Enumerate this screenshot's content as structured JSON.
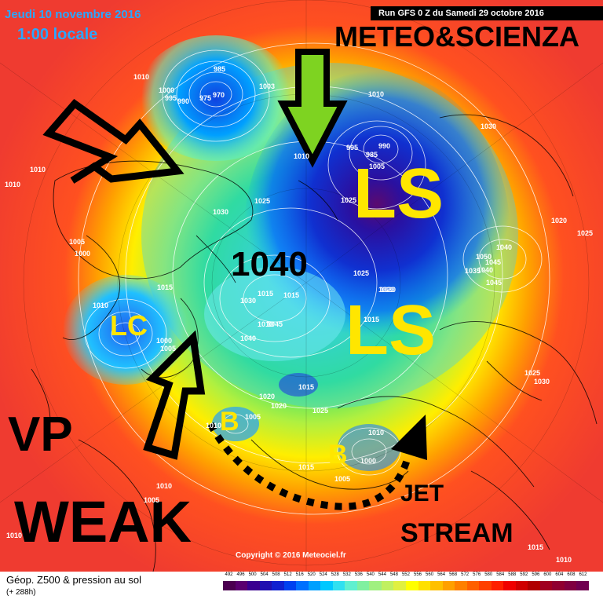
{
  "map": {
    "date": "Jeudi 10 novembre 2016",
    "time": "1:00 locale",
    "run_banner": "Run GFS 0 Z du Samedi 29 octobre 2016",
    "brand": "METEO&SCIENZA",
    "copyright": "Copyright © 2016 Meteociel.fr",
    "annotations": {
      "ls_upper": "LS",
      "ls_lower": "LS",
      "lc": "LC",
      "b_left": "B",
      "b_right": "B",
      "high_pressure": "1040",
      "vp": "VP",
      "weak": "WEAK",
      "jet": "JET",
      "stream": "STREAM"
    },
    "pressure_labels": [
      "1010",
      "985",
      "1000",
      "995",
      "990",
      "975",
      "970",
      "1003",
      "1010",
      "995",
      "990",
      "985",
      "1005",
      "1030",
      "1010",
      "1010",
      "1010",
      "1005",
      "1000",
      "1030",
      "1025",
      "1025",
      "1020",
      "1025",
      "1015",
      "1010",
      "1000",
      "1005",
      "1015",
      "1030",
      "1015",
      "1040",
      "1010",
      "1045",
      "1040",
      "1020",
      "1020",
      "1015",
      "1025",
      "1005",
      "1010",
      "1015",
      "1010",
      "1000",
      "1005",
      "1010",
      "1005",
      "1010",
      "1030",
      "1025",
      "1020",
      "1040",
      "1050",
      "1045",
      "1035",
      "1045",
      "1025",
      "1020",
      "1015",
      "1010",
      "1015"
    ]
  },
  "legend": {
    "title": "Géop. Z500 & pression au sol",
    "subtitle": "(+ 288h)",
    "scale_values": [
      "492",
      "496",
      "500",
      "504",
      "508",
      "512",
      "516",
      "520",
      "524",
      "528",
      "532",
      "536",
      "540",
      "544",
      "548",
      "552",
      "556",
      "560",
      "564",
      "568",
      "572",
      "576",
      "580",
      "584",
      "588",
      "592",
      "596",
      "600",
      "604",
      "608",
      "612"
    ],
    "scale_colors": [
      "#4b0050",
      "#5a0070",
      "#3a0090",
      "#2010b0",
      "#1020d0",
      "#0040f0",
      "#0070ff",
      "#00a0ff",
      "#00c8ff",
      "#30e0f0",
      "#60f0d0",
      "#80f0a0",
      "#a0f080",
      "#c0f060",
      "#e0f040",
      "#ffff00",
      "#ffe000",
      "#ffc000",
      "#ffa000",
      "#ff8000",
      "#ff6000",
      "#ff4000",
      "#ff2000",
      "#f00000",
      "#d00000",
      "#b00000",
      "#a00020",
      "#900030",
      "#800040",
      "#700050"
    ]
  }
}
